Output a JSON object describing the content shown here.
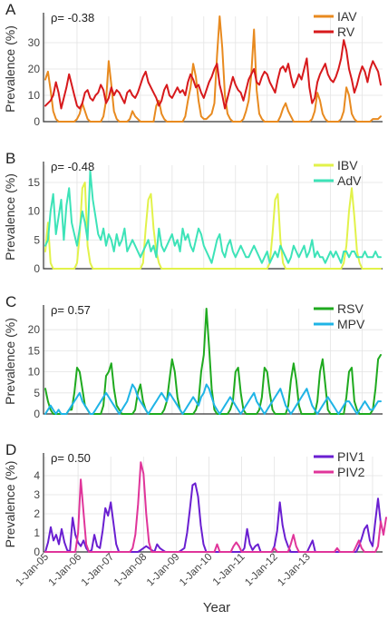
{
  "colors": {
    "IAV": "#e88a1f",
    "RV": "#d7191c",
    "IBV": "#e2f24a",
    "AdV": "#3de3b8",
    "RSV": "#1faa1f",
    "MPV": "#1fb4e6",
    "PIV1": "#6a1fd1",
    "PIV2": "#e0359a"
  },
  "chart_data": [
    {
      "type": "line",
      "panel_label": "A",
      "annotation": "ρ= -0.38",
      "xlabel": "",
      "ylabel": "Prevalence (%)",
      "ylim": [
        0,
        40
      ],
      "yticks": [
        0,
        10,
        20,
        30
      ],
      "x_start": "2005-01",
      "x_step": "month",
      "legend_position": "top-right",
      "series": [
        {
          "name": "IAV",
          "color": "#e88a1f",
          "values": [
            16,
            19,
            12,
            4,
            1,
            0,
            0,
            0,
            0,
            0,
            0,
            0,
            1,
            3,
            7,
            4,
            1,
            0,
            0,
            0,
            0,
            0,
            2,
            8,
            23,
            14,
            4,
            1,
            0,
            0,
            0,
            0,
            1,
            4,
            2,
            1,
            0,
            0,
            0,
            0,
            0,
            0,
            6,
            8,
            3,
            1,
            0,
            0,
            0,
            0,
            0,
            0,
            0,
            2,
            8,
            13,
            22,
            17,
            8,
            2,
            1,
            1,
            2,
            3,
            7,
            25,
            40,
            28,
            10,
            3,
            1,
            0,
            0,
            0,
            0,
            1,
            4,
            8,
            18,
            35,
            12,
            3,
            1,
            0,
            0,
            0,
            0,
            0,
            0,
            2,
            5,
            7,
            4,
            2,
            0,
            0,
            0,
            0,
            0,
            0,
            0,
            1,
            4,
            11,
            8,
            3,
            1,
            0,
            0,
            0,
            0,
            0,
            1,
            4,
            13,
            10,
            3,
            1,
            0,
            0,
            0,
            0,
            0,
            0,
            1,
            1,
            1,
            2
          ]
        },
        {
          "name": "RV",
          "color": "#d7191c",
          "values": [
            6,
            7,
            8,
            10,
            15,
            11,
            5,
            9,
            13,
            18,
            14,
            10,
            6,
            5,
            7,
            11,
            12,
            9,
            8,
            10,
            11,
            14,
            12,
            7,
            9,
            13,
            10,
            12,
            11,
            9,
            7,
            11,
            12,
            10,
            9,
            11,
            14,
            17,
            19,
            15,
            13,
            11,
            9,
            6,
            8,
            12,
            14,
            10,
            9,
            11,
            13,
            11,
            12,
            10,
            15,
            18,
            16,
            13,
            14,
            11,
            9,
            12,
            15,
            17,
            20,
            22,
            14,
            10,
            5,
            9,
            13,
            17,
            14,
            12,
            11,
            8,
            12,
            16,
            18,
            20,
            15,
            14,
            17,
            19,
            18,
            15,
            13,
            11,
            16,
            20,
            21,
            19,
            22,
            17,
            13,
            15,
            18,
            16,
            20,
            24,
            13,
            7,
            9,
            15,
            18,
            20,
            22,
            18,
            16,
            15,
            17,
            20,
            24,
            31,
            27,
            20,
            16,
            11,
            14,
            18,
            21,
            19,
            15,
            20,
            23,
            21,
            19,
            14
          ]
        }
      ]
    },
    {
      "type": "line",
      "panel_label": "B",
      "annotation": "ρ= -0.48",
      "xlabel": "",
      "ylabel": "Prevalence (%)",
      "ylim": [
        0,
        18
      ],
      "yticks": [
        0,
        5,
        10,
        15
      ],
      "x_start": "2005-01",
      "x_step": "month",
      "legend_position": "top-right",
      "series": [
        {
          "name": "IBV",
          "color": "#e2f24a",
          "values": [
            3,
            8,
            1,
            0,
            0,
            0,
            0,
            0,
            0,
            0,
            0,
            0,
            1,
            6,
            14,
            15,
            4,
            1,
            0,
            0,
            0,
            0,
            0,
            0,
            0,
            0,
            0,
            0,
            0,
            0,
            0,
            0,
            0,
            0,
            0,
            0,
            0,
            1,
            7,
            12,
            13,
            7,
            3,
            1,
            0,
            0,
            0,
            0,
            0,
            0,
            0,
            0,
            0,
            0,
            0,
            0,
            0,
            0,
            0,
            0,
            0,
            0,
            0,
            0,
            0,
            0,
            0,
            0,
            0,
            0,
            0,
            0,
            0,
            0,
            0,
            0,
            0,
            0,
            0,
            0,
            0,
            0,
            0,
            0,
            0,
            1,
            6,
            12,
            13,
            5,
            1,
            0,
            0,
            0,
            0,
            0,
            0,
            0,
            0,
            0,
            0,
            0,
            0,
            0,
            0,
            0,
            0,
            0,
            0,
            0,
            0,
            0,
            0,
            1,
            4,
            10,
            14,
            9,
            3,
            1,
            0,
            0,
            0,
            0,
            0,
            0,
            0,
            0
          ]
        },
        {
          "name": "AdV",
          "color": "#3de3b8",
          "values": [
            4,
            5,
            10,
            13,
            6,
            9,
            12,
            5,
            11,
            14,
            8,
            6,
            4,
            7,
            10,
            8,
            5,
            17,
            12,
            9,
            6,
            5,
            7,
            4,
            6,
            5,
            3,
            6,
            4,
            5,
            7,
            3,
            4,
            5,
            4,
            3,
            2,
            3,
            4,
            5,
            3,
            4,
            2,
            7,
            4,
            3,
            4,
            5,
            6,
            4,
            5,
            3,
            7,
            5,
            6,
            4,
            3,
            5,
            7,
            6,
            4,
            3,
            2,
            1,
            3,
            5,
            6,
            3,
            2,
            4,
            5,
            3,
            2,
            3,
            4,
            3,
            2,
            2,
            3,
            4,
            3,
            2,
            1,
            2,
            3,
            1,
            2,
            3,
            2,
            4,
            3,
            2,
            1,
            2,
            4,
            3,
            2,
            3,
            4,
            2,
            3,
            5,
            2,
            3,
            2,
            2,
            1,
            2,
            3,
            2,
            3,
            2,
            1,
            3,
            3,
            2,
            3,
            3,
            2,
            2,
            2,
            3,
            2,
            2,
            2,
            3,
            2,
            2
          ]
        }
      ]
    },
    {
      "type": "line",
      "panel_label": "C",
      "annotation": "ρ= 0.57",
      "xlabel": "",
      "ylabel": "Prevalence (%)",
      "ylim": [
        0,
        25
      ],
      "yticks": [
        0,
        5,
        10,
        15,
        20
      ],
      "x_start": "2005-01",
      "x_step": "month",
      "legend_position": "top-right",
      "series": [
        {
          "name": "RSV",
          "color": "#1faa1f",
          "values": [
            6,
            3,
            1,
            0,
            0,
            0,
            0,
            0,
            0,
            1,
            1,
            5,
            11,
            10,
            6,
            2,
            1,
            0,
            0,
            0,
            0,
            0,
            2,
            9,
            10,
            12,
            6,
            2,
            1,
            0,
            0,
            0,
            0,
            0,
            1,
            5,
            7,
            3,
            1,
            0,
            0,
            0,
            0,
            0,
            0,
            1,
            3,
            8,
            13,
            10,
            4,
            1,
            0,
            0,
            0,
            0,
            0,
            1,
            3,
            10,
            14,
            25,
            16,
            6,
            1,
            0,
            0,
            0,
            0,
            0,
            1,
            3,
            10,
            11,
            5,
            1,
            0,
            0,
            0,
            0,
            0,
            1,
            4,
            11,
            10,
            5,
            1,
            0,
            0,
            0,
            0,
            0,
            2,
            8,
            12,
            8,
            2,
            0,
            0,
            0,
            0,
            0,
            0,
            3,
            10,
            13,
            7,
            1,
            0,
            0,
            0,
            0,
            0,
            0,
            4,
            10,
            11,
            3,
            1,
            0,
            0,
            0,
            0,
            0,
            1,
            6,
            13,
            14
          ]
        },
        {
          "name": "MPV",
          "color": "#1fb4e6",
          "values": [
            0,
            1,
            2,
            1,
            0,
            1,
            0,
            0,
            0,
            1,
            2,
            3,
            4,
            5,
            3,
            2,
            1,
            0,
            0,
            1,
            2,
            3,
            4,
            5,
            4,
            3,
            2,
            1,
            0,
            1,
            2,
            3,
            5,
            7,
            6,
            4,
            3,
            2,
            1,
            0,
            1,
            2,
            3,
            4,
            5,
            4,
            3,
            5,
            4,
            3,
            2,
            1,
            0,
            1,
            2,
            3,
            4,
            3,
            2,
            4,
            5,
            7,
            6,
            4,
            2,
            1,
            0,
            1,
            2,
            3,
            4,
            3,
            2,
            1,
            0,
            1,
            2,
            3,
            4,
            5,
            3,
            2,
            1,
            0,
            1,
            2,
            3,
            4,
            5,
            6,
            4,
            2,
            1,
            0,
            1,
            2,
            3,
            4,
            5,
            6,
            4,
            2,
            1,
            0,
            1,
            2,
            3,
            4,
            3,
            2,
            1,
            0,
            1,
            2,
            3,
            3,
            2,
            1,
            0,
            1,
            2,
            3,
            2,
            1,
            1,
            2,
            3,
            3
          ]
        }
      ]
    },
    {
      "type": "line",
      "panel_label": "D",
      "annotation": "ρ= 0.50",
      "xlabel": "Year",
      "ylabel": "Prevalence (%)",
      "ylim": [
        0,
        5
      ],
      "yticks": [
        0,
        1,
        2,
        3,
        4
      ],
      "x_start": "2005-01",
      "x_step": "month",
      "x_tick_labels": [
        "1-Jan-05",
        "1-Jan-06",
        "1-Jan-07",
        "1-Jan-08",
        "1-Jan-09",
        "1-Jan-10",
        "1-Jan-11",
        "1-Jan-12",
        "1-Jan-13"
      ],
      "legend_position": "top-right",
      "series": [
        {
          "name": "PIV1",
          "color": "#6a1fd1",
          "values": [
            0,
            0.5,
            1.3,
            0.6,
            0.9,
            0.4,
            1.2,
            0.5,
            0.1,
            0,
            1.8,
            0.9,
            0.5,
            0.3,
            0.6,
            0.2,
            0,
            0.1,
            0.9,
            0.3,
            0.2,
            1.1,
            2.3,
            1.9,
            2.6,
            1.5,
            0.4,
            0,
            0,
            0,
            0,
            0,
            0,
            0,
            0,
            0.1,
            0.2,
            0.3,
            0.2,
            0.1,
            0,
            0.4,
            0.2,
            0.1,
            0,
            0,
            0,
            0,
            0,
            0,
            0.1,
            0.2,
            1,
            2.2,
            3.5,
            3.6,
            2.9,
            1.4,
            0.4,
            0,
            0,
            0,
            0,
            0,
            0,
            0,
            0,
            0,
            0,
            0,
            0,
            0,
            0,
            0.2,
            1.2,
            0.4,
            0.1,
            0.3,
            0.4,
            0,
            0,
            0,
            0,
            0,
            0.3,
            1.1,
            2.6,
            1.4,
            0.7,
            0.3,
            0,
            0,
            0,
            0,
            0,
            0,
            0,
            0.3,
            0.6,
            0,
            0,
            0,
            0,
            0,
            0,
            0,
            0,
            0,
            0,
            0,
            0,
            0,
            0,
            0,
            0,
            0.3,
            0.7,
            1.2,
            1.4,
            0.6,
            0.3,
            1.6,
            2.8,
            1.5
          ]
        },
        {
          "name": "PIV2",
          "color": "#e0359a",
          "values": [
            0,
            0,
            0,
            0,
            0,
            0,
            0,
            0,
            0,
            0,
            0,
            0,
            1,
            3.8,
            2.1,
            0.4,
            0,
            0,
            0,
            0,
            0,
            0,
            0,
            0,
            0,
            0,
            0,
            0,
            0,
            0,
            0,
            0,
            0.2,
            0.9,
            2.5,
            4.7,
            4.1,
            2,
            0.5,
            0,
            0,
            0,
            0,
            0,
            0,
            0,
            0,
            0,
            0,
            0,
            0,
            0,
            0,
            0,
            0,
            0,
            0,
            0,
            0,
            0,
            0,
            0,
            0,
            0.4,
            0,
            0,
            0,
            0,
            0,
            0.3,
            0.5,
            0.3,
            0,
            0,
            0,
            0,
            0,
            0,
            0,
            0,
            0,
            0,
            0,
            0,
            0.2,
            0,
            0,
            0,
            0,
            0,
            0.4,
            0.9,
            0.3,
            0,
            0,
            0,
            0,
            0,
            0,
            0,
            0,
            0,
            0,
            0,
            0,
            0,
            0,
            0.2,
            0,
            0,
            0,
            0,
            0,
            0,
            0.3,
            0.6,
            0.2,
            0,
            0,
            0,
            0,
            0,
            0.3,
            1.6,
            0.9,
            1.8
          ]
        }
      ]
    }
  ]
}
